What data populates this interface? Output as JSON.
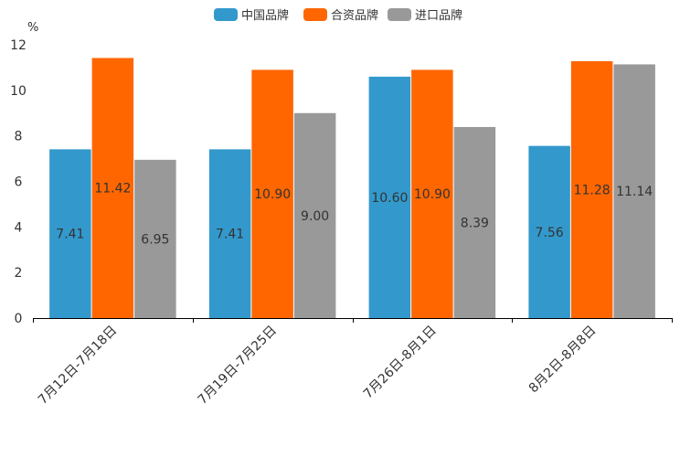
{
  "chart_data": {
    "type": "bar",
    "title": "",
    "xlabel": "",
    "ylabel": "%",
    "ylim": [
      0,
      12
    ],
    "yticks": [
      0,
      2,
      4,
      6,
      8,
      10,
      12
    ],
    "grid": false,
    "legend_position": "top-center",
    "categories": [
      "7月12日-7月18日",
      "7月19日-7月25日",
      "7月26日-8月1日",
      "8月2日-8月8日"
    ],
    "series": [
      {
        "name": "中国品牌",
        "color": "#3399cc",
        "values": [
          7.41,
          7.41,
          10.6,
          7.56
        ],
        "labels": [
          "7.41",
          "7.41",
          "10.60",
          "7.56"
        ]
      },
      {
        "name": "合资品牌",
        "color": "#ff6600",
        "values": [
          11.42,
          10.9,
          10.9,
          11.28
        ],
        "labels": [
          "11.42",
          "10.90",
          "10.90",
          "11.28"
        ]
      },
      {
        "name": "进口品牌",
        "color": "#999999",
        "values": [
          6.95,
          9.0,
          8.39,
          11.14
        ],
        "labels": [
          "6.95",
          "9.00",
          "8.39",
          "11.14"
        ]
      }
    ]
  }
}
